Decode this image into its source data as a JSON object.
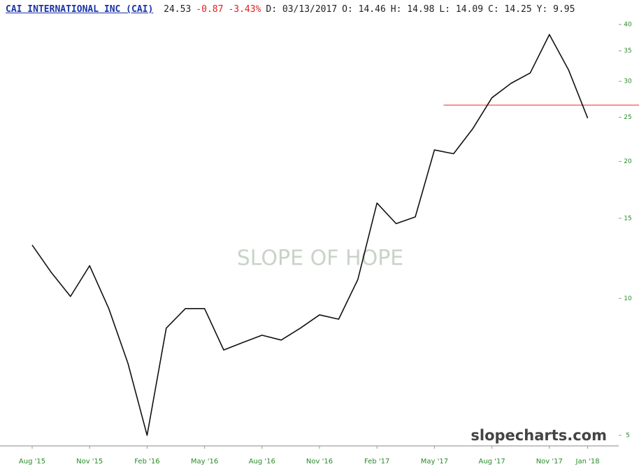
{
  "chart_data": {
    "type": "line",
    "title": "CAI INTERNATIONAL INC (CAI)",
    "quote": [
      {
        "text": "24.53",
        "color": "#222222"
      },
      {
        "text": "-0.87",
        "color": "#e02020"
      },
      {
        "text": "-3.43%",
        "color": "#e02020"
      },
      {
        "text": "D: 03/13/2017",
        "color": "#222222"
      },
      {
        "text": "O: 14.46",
        "color": "#222222"
      },
      {
        "text": "H: 14.98",
        "color": "#222222"
      },
      {
        "text": "L: 14.09",
        "color": "#222222"
      },
      {
        "text": "C: 14.25",
        "color": "#222222"
      },
      {
        "text": "Y:  9.95",
        "color": "#222222"
      }
    ],
    "watermark": "SLOPE OF HOPE",
    "footer": "slopecharts.com",
    "x": [
      "2015-08",
      "2015-09",
      "2015-10",
      "2015-11",
      "2015-12",
      "2016-01",
      "2016-02",
      "2016-03",
      "2016-04",
      "2016-05",
      "2016-06",
      "2016-07",
      "2016-08",
      "2016-09",
      "2016-10",
      "2016-11",
      "2016-12",
      "2017-01",
      "2017-02",
      "2017-03",
      "2017-04",
      "2017-05",
      "2017-06",
      "2017-07",
      "2017-08",
      "2017-09",
      "2017-10",
      "2017-11",
      "2017-12",
      "2018-01"
    ],
    "series": [
      {
        "name": "CAI",
        "color": "#111111",
        "values": [
          13.1,
          11.4,
          10.1,
          11.8,
          9.5,
          7.2,
          5.0,
          8.6,
          9.5,
          9.5,
          7.7,
          8.0,
          8.3,
          8.1,
          8.6,
          9.2,
          9.0,
          11.0,
          16.2,
          14.6,
          15.1,
          21.2,
          20.8,
          23.6,
          27.6,
          29.7,
          31.3,
          38.0,
          31.8,
          24.9
        ]
      }
    ],
    "xticks": [
      {
        "value": "2015-08",
        "label": "Aug '15"
      },
      {
        "value": "2015-11",
        "label": "Nov '15"
      },
      {
        "value": "2016-02",
        "label": "Feb '16"
      },
      {
        "value": "2016-05",
        "label": "May '16"
      },
      {
        "value": "2016-08",
        "label": "Aug '16"
      },
      {
        "value": "2016-11",
        "label": "Nov '16"
      },
      {
        "value": "2017-02",
        "label": "Feb '17"
      },
      {
        "value": "2017-05",
        "label": "May '17"
      },
      {
        "value": "2017-08",
        "label": "Aug '17"
      },
      {
        "value": "2017-11",
        "label": "Nov '17"
      },
      {
        "value": "2018-01",
        "label": "Jan '18"
      }
    ],
    "ylim": [
      4.74,
      41.0
    ],
    "yticks": [
      5,
      10,
      15,
      20,
      25,
      30,
      35,
      40
    ],
    "log_scale": true,
    "tick_color": "#2a8a2a",
    "reference_line": {
      "value": 26.6,
      "color": "#ff2020",
      "from": "2017-05"
    }
  }
}
